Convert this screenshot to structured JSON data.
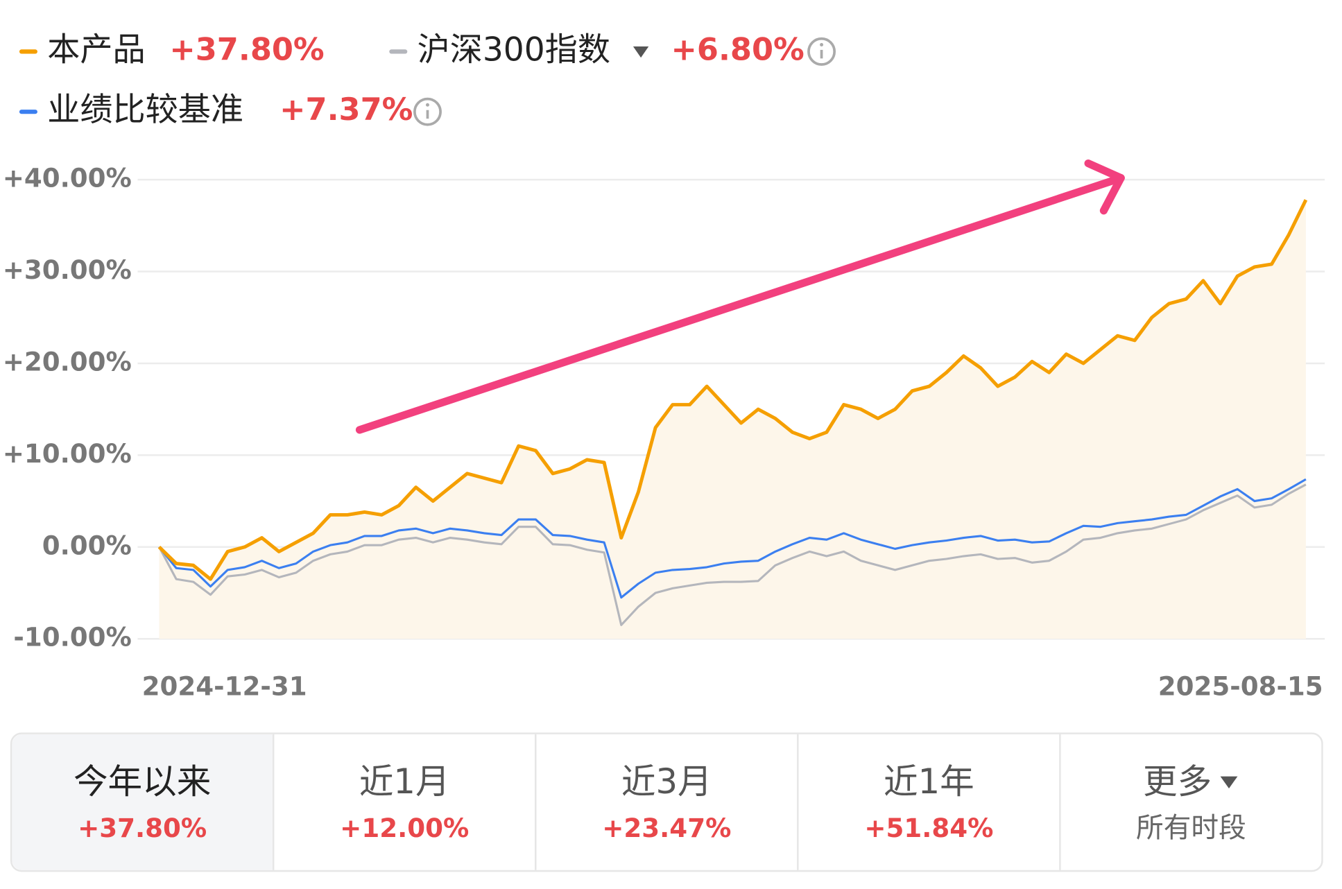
{
  "chart_data": {
    "type": "line",
    "categories": [
      "2024-12-31",
      null,
      null,
      null,
      null,
      null,
      null,
      null,
      null,
      null,
      null,
      null,
      null,
      null,
      null,
      null,
      null,
      null,
      null,
      null,
      null,
      null,
      null,
      null,
      null,
      null,
      null,
      null,
      null,
      null,
      null,
      null,
      null,
      null,
      null,
      null,
      null,
      null,
      null,
      null,
      null,
      null,
      null,
      null,
      null,
      null,
      null,
      null,
      null,
      null,
      null,
      null,
      null,
      null,
      null,
      null,
      null,
      null,
      null,
      null,
      null,
      null,
      null,
      null,
      null,
      null,
      null,
      "2025-08-15"
    ],
    "series": [
      {
        "name": "本产品",
        "return_label": "+37.80%",
        "color": "#f59f00",
        "area": true,
        "values": [
          0,
          -1.8,
          -2.0,
          -3.5,
          -0.5,
          0,
          1.0,
          -0.5,
          0.5,
          1.5,
          3.5,
          3.5,
          3.8,
          3.5,
          4.5,
          6.5,
          5.0,
          6.5,
          8,
          7.5,
          7.0,
          11.0,
          10.5,
          8,
          8.5,
          9.5,
          9.2,
          1.0,
          6,
          13,
          15.5,
          15.5,
          17.5,
          15.5,
          13.5,
          15,
          14,
          12.5,
          11.8,
          12.5,
          15.5,
          15,
          14,
          15,
          17,
          17.5,
          19,
          20.8,
          19.5,
          17.5,
          18.5,
          20.2,
          19,
          21,
          20,
          21.5,
          23,
          22.5,
          25,
          26.5,
          27,
          29,
          26.5,
          29.5,
          30.5,
          30.8,
          34,
          37.8
        ]
      },
      {
        "name": "沪深300指数",
        "return_label": "+6.80%",
        "color": "#b4b6bc",
        "values": [
          0,
          -3.5,
          -3.8,
          -5.2,
          -3.2,
          -3.0,
          -2.5,
          -3.3,
          -2.8,
          -1.5,
          -0.8,
          -0.5,
          0.2,
          0.2,
          0.8,
          1.0,
          0.5,
          1.0,
          0.8,
          0.5,
          0.3,
          2.2,
          2.2,
          0.3,
          0.2,
          -0.3,
          -0.6,
          -8.5,
          -6.5,
          -5.0,
          -4.5,
          -4.2,
          -3.9,
          -3.8,
          -3.8,
          -3.7,
          -2.0,
          -1.2,
          -0.5,
          -1.0,
          -0.5,
          -1.5,
          -2.0,
          -2.5,
          -2.0,
          -1.5,
          -1.3,
          -1.0,
          -0.8,
          -1.3,
          -1.2,
          -1.7,
          -1.5,
          -0.5,
          0.8,
          1.0,
          1.5,
          1.8,
          2.0,
          2.5,
          3.0,
          4.0,
          4.8,
          5.6,
          4.3,
          4.6,
          5.8,
          6.8
        ]
      },
      {
        "name": "业绩比较基准",
        "return_label": "+7.37%",
        "color": "#3b7ff0",
        "values": [
          0,
          -2.3,
          -2.5,
          -4.3,
          -2.5,
          -2.2,
          -1.5,
          -2.3,
          -1.8,
          -0.5,
          0.2,
          0.5,
          1.2,
          1.2,
          1.8,
          2.0,
          1.5,
          2.0,
          1.8,
          1.5,
          1.3,
          3.0,
          3.0,
          1.3,
          1.2,
          0.8,
          0.5,
          -5.5,
          -4.0,
          -2.8,
          -2.5,
          -2.4,
          -2.2,
          -1.8,
          -1.6,
          -1.5,
          -0.5,
          0.3,
          1.0,
          0.8,
          1.5,
          0.8,
          0.3,
          -0.2,
          0.2,
          0.5,
          0.7,
          1.0,
          1.2,
          0.7,
          0.8,
          0.5,
          0.6,
          1.5,
          2.3,
          2.2,
          2.6,
          2.8,
          3.0,
          3.3,
          3.5,
          4.5,
          5.5,
          6.3,
          5.0,
          5.3,
          6.3,
          7.37
        ]
      }
    ],
    "ylim": [
      -10,
      40
    ],
    "yticks": [
      {
        "value": 40,
        "label": "+40.00%"
      },
      {
        "value": 30,
        "label": "+30.00%"
      },
      {
        "value": 20,
        "label": "+20.00%"
      },
      {
        "value": 10,
        "label": "+10.00%"
      },
      {
        "value": 0,
        "label": "0.00%"
      },
      {
        "value": -10,
        "label": "-10.00%"
      }
    ],
    "grid": true
  },
  "tabs": [
    {
      "label": "今年以来",
      "value": "+37.80%"
    },
    {
      "label": "近1月",
      "value": "+12.00%"
    },
    {
      "label": "近3月",
      "value": "+23.47%"
    },
    {
      "label": "近1年",
      "value": "+51.84%"
    },
    {
      "label": "更多",
      "value": "所有时段"
    }
  ]
}
